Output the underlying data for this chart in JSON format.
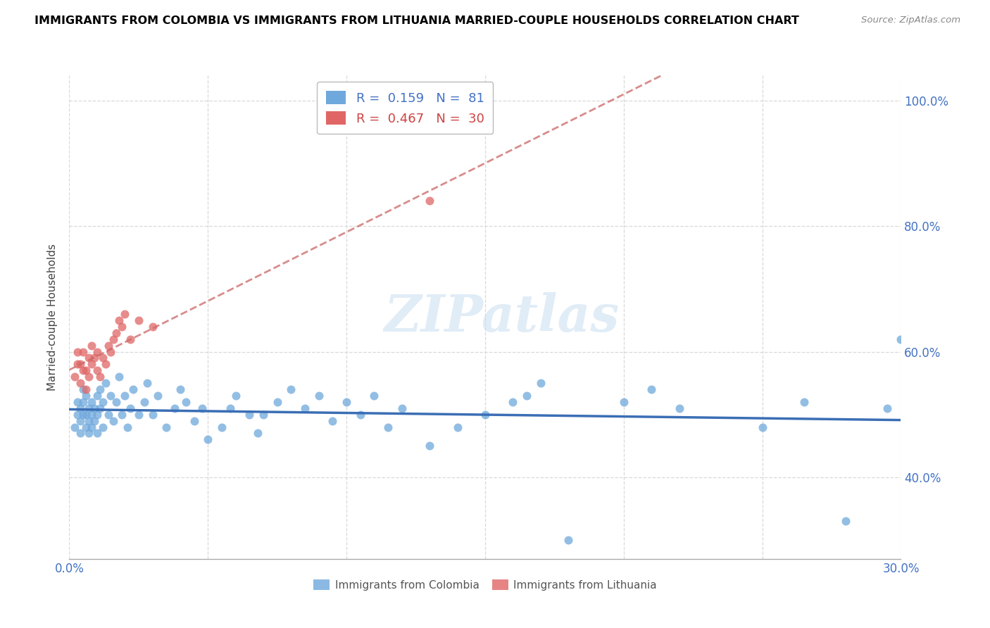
{
  "title": "IMMIGRANTS FROM COLOMBIA VS IMMIGRANTS FROM LITHUANIA MARRIED-COUPLE HOUSEHOLDS CORRELATION CHART",
  "source": "Source: ZipAtlas.com",
  "ylabel": "Married-couple Households",
  "xlim": [
    0.0,
    0.3
  ],
  "ylim": [
    0.27,
    1.04
  ],
  "yticks": [
    0.4,
    0.6,
    0.8,
    1.0
  ],
  "ytick_labels": [
    "40.0%",
    "60.0%",
    "80.0%",
    "100.0%"
  ],
  "xticks": [
    0.0,
    0.05,
    0.1,
    0.15,
    0.2,
    0.25,
    0.3
  ],
  "xtick_labels": [
    "0.0%",
    "",
    "",
    "",
    "",
    "",
    "30.0%"
  ],
  "colombia_color": "#6fa8dc",
  "lithuania_color": "#e06666",
  "colombia_R": 0.159,
  "colombia_N": 81,
  "lithuania_R": 0.467,
  "lithuania_N": 30,
  "colombia_line_color": "#3b6eb5",
  "lithuania_line_color": "#cc6666",
  "grid_color": "#d9d9d9",
  "watermark": "ZIPatlas",
  "colombia_x": [
    0.002,
    0.003,
    0.003,
    0.004,
    0.004,
    0.004,
    0.005,
    0.005,
    0.005,
    0.006,
    0.006,
    0.006,
    0.007,
    0.007,
    0.007,
    0.008,
    0.008,
    0.008,
    0.009,
    0.009,
    0.01,
    0.01,
    0.01,
    0.011,
    0.011,
    0.012,
    0.012,
    0.013,
    0.014,
    0.015,
    0.016,
    0.017,
    0.018,
    0.019,
    0.02,
    0.021,
    0.022,
    0.023,
    0.025,
    0.027,
    0.028,
    0.03,
    0.032,
    0.035,
    0.038,
    0.04,
    0.042,
    0.045,
    0.048,
    0.05,
    0.055,
    0.058,
    0.06,
    0.065,
    0.068,
    0.07,
    0.075,
    0.08,
    0.085,
    0.09,
    0.095,
    0.1,
    0.105,
    0.11,
    0.115,
    0.12,
    0.13,
    0.14,
    0.15,
    0.16,
    0.165,
    0.17,
    0.18,
    0.2,
    0.21,
    0.22,
    0.25,
    0.265,
    0.28,
    0.295,
    0.3
  ],
  "colombia_y": [
    0.48,
    0.5,
    0.52,
    0.47,
    0.49,
    0.51,
    0.5,
    0.52,
    0.54,
    0.48,
    0.5,
    0.53,
    0.47,
    0.49,
    0.51,
    0.48,
    0.5,
    0.52,
    0.49,
    0.51,
    0.47,
    0.5,
    0.53,
    0.51,
    0.54,
    0.48,
    0.52,
    0.55,
    0.5,
    0.53,
    0.49,
    0.52,
    0.56,
    0.5,
    0.53,
    0.48,
    0.51,
    0.54,
    0.5,
    0.52,
    0.55,
    0.5,
    0.53,
    0.48,
    0.51,
    0.54,
    0.52,
    0.49,
    0.51,
    0.46,
    0.48,
    0.51,
    0.53,
    0.5,
    0.47,
    0.5,
    0.52,
    0.54,
    0.51,
    0.53,
    0.49,
    0.52,
    0.5,
    0.53,
    0.48,
    0.51,
    0.45,
    0.48,
    0.5,
    0.52,
    0.53,
    0.55,
    0.3,
    0.52,
    0.54,
    0.51,
    0.48,
    0.52,
    0.33,
    0.51,
    0.62
  ],
  "lithuania_x": [
    0.002,
    0.003,
    0.003,
    0.004,
    0.004,
    0.005,
    0.005,
    0.006,
    0.006,
    0.007,
    0.007,
    0.008,
    0.008,
    0.009,
    0.01,
    0.01,
    0.011,
    0.012,
    0.013,
    0.014,
    0.015,
    0.016,
    0.017,
    0.018,
    0.019,
    0.02,
    0.022,
    0.025,
    0.03,
    0.13
  ],
  "lithuania_y": [
    0.56,
    0.58,
    0.6,
    0.55,
    0.58,
    0.57,
    0.6,
    0.54,
    0.57,
    0.56,
    0.59,
    0.58,
    0.61,
    0.59,
    0.57,
    0.6,
    0.56,
    0.59,
    0.58,
    0.61,
    0.6,
    0.62,
    0.63,
    0.65,
    0.64,
    0.66,
    0.62,
    0.65,
    0.64,
    0.84
  ]
}
